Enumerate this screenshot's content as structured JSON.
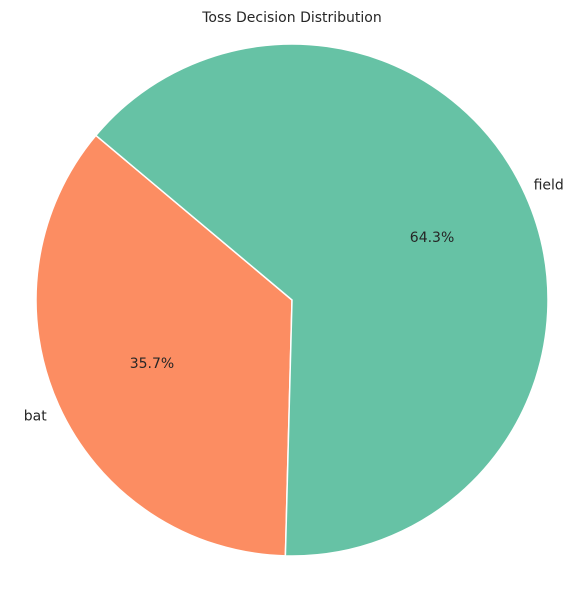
{
  "chart_data": {
    "type": "pie",
    "title": "Toss Decision Distribution",
    "categories": [
      "bat",
      "field"
    ],
    "values": [
      35.7,
      64.3
    ],
    "value_labels": [
      "35.7%",
      "64.3%"
    ],
    "colors": [
      "#fc8d62",
      "#66c2a5"
    ],
    "start_angle_deg": 140,
    "direction": "counterclockwise"
  }
}
